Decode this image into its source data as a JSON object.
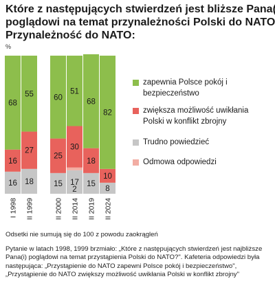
{
  "header": {
    "title_lines": [
      "Które z następujących stwierdzeń jest bliższe Pana(i)",
      "poglądowi na temat przynależności Polski do NATO?",
      "Przynależność do NATO:"
    ],
    "unit": "%"
  },
  "chart_data": {
    "type": "bar",
    "stacked": true,
    "categories": [
      "I 1998",
      "II 1999",
      "II 2000",
      "II 2014",
      "II 2019",
      "II 2024"
    ],
    "series": [
      {
        "name": "Trudno powiedzieć",
        "values": [
          16,
          18,
          15,
          17,
          15,
          8
        ]
      },
      {
        "name": "Odmowa odpowiedzi",
        "values": [
          0,
          0,
          0,
          2,
          0,
          0
        ]
      },
      {
        "name": "zwiększa możliwość uwikłania Polski w konflikt zbrojny",
        "values": [
          16,
          27,
          25,
          30,
          18,
          10
        ]
      },
      {
        "name": "zapewnia Polsce pokój i bezpieczeństwo",
        "values": [
          68,
          55,
          60,
          51,
          68,
          82
        ]
      }
    ],
    "colors": [
      "#c6c6c6",
      "#f2ada3",
      "#e8625c",
      "#8dbe4c"
    ],
    "ylim": [
      0,
      100
    ]
  },
  "legend": {
    "items": [
      {
        "label": "zapewnia Polsce pokój i bezpieczeństwo",
        "color": "#8dbe4c"
      },
      {
        "label": "zwiększa możliwość uwikłania Polski w konflikt zbrojny",
        "color": "#e8625c"
      },
      {
        "label": "Trudno powiedzieć",
        "color": "#c6c6c6"
      },
      {
        "label": "Odmowa odpowiedzi",
        "color": "#f2ada3"
      }
    ]
  },
  "notes": {
    "note1": "Odsetki nie sumują się do 100 z powodu zaokrągleń",
    "note2": "Pytanie w latach 1998, 1999 brzmiało: „Które z następujących stwierdzeń jest najbliższe Pana(i) poglądowi na temat przystąpienia Polski do NATO?\". Kafeteria odpowiedzi była następująca: „Przystąpienie do NATO zapewni Polsce pokój i bezpieczeństwo\", „Przystąpienie do NATO zwiększy możliwość uwikłania Polski w konflikt zbrojny\""
  }
}
